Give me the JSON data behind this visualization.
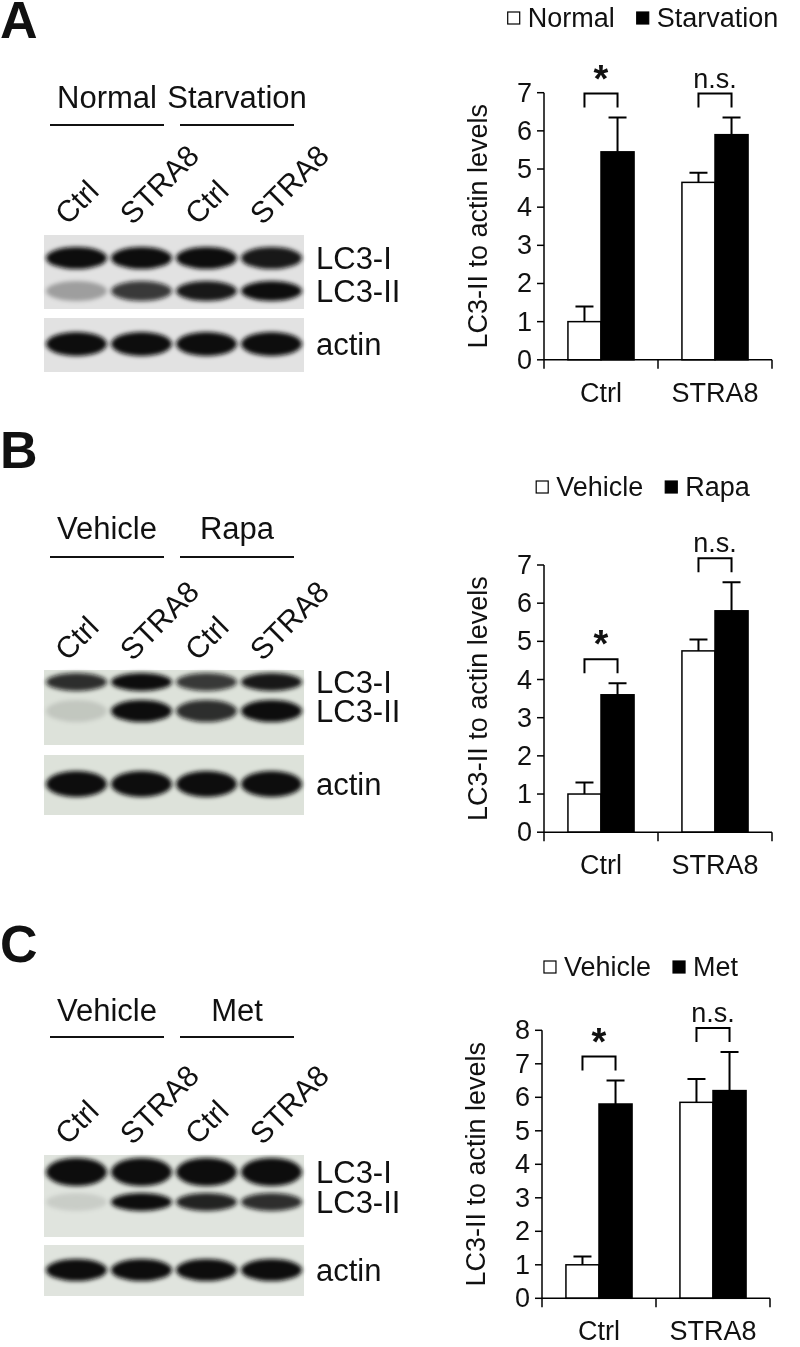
{
  "chart_data": [
    {
      "type": "other",
      "title": "A",
      "annotations": [
        "Normal",
        "Starvation",
        "Ctrl",
        "STRA8",
        "Ctrl",
        "STRA8",
        "LC3-I",
        "LC3-II",
        "actin"
      ]
    },
    {
      "type": "bar",
      "categories": [
        "Ctrl",
        "STRA8"
      ],
      "series": [
        {
          "name": "Normal",
          "color": "#ffffff",
          "values": [
            1.0,
            4.65
          ],
          "errors": [
            0.4,
            0.25
          ]
        },
        {
          "name": "Starvation",
          "color": "#000000",
          "values": [
            5.45,
            5.9
          ],
          "errors": [
            0.9,
            0.45
          ]
        }
      ],
      "ylabel": "LC3-II to actin levels",
      "ylim": [
        0,
        7
      ],
      "yticks": [
        0,
        1,
        2,
        3,
        4,
        5,
        6,
        7
      ],
      "legend": "top",
      "annotations": [
        "*",
        "n.s."
      ]
    },
    {
      "type": "other",
      "title": "B",
      "annotations": [
        "Vehicle",
        "Rapa",
        "Ctrl",
        "STRA8",
        "Ctrl",
        "STRA8",
        "LC3-I",
        "LC3-II",
        "actin"
      ]
    },
    {
      "type": "bar",
      "categories": [
        "Ctrl",
        "STRA8"
      ],
      "series": [
        {
          "name": "Vehicle",
          "color": "#ffffff",
          "values": [
            1.0,
            4.75
          ],
          "errors": [
            0.3,
            0.3
          ]
        },
        {
          "name": "Rapa",
          "color": "#000000",
          "values": [
            3.6,
            5.8
          ],
          "errors": [
            0.3,
            0.75
          ]
        }
      ],
      "ylabel": "LC3-II to actin levels",
      "ylim": [
        0,
        7
      ],
      "yticks": [
        0,
        1,
        2,
        3,
        4,
        5,
        6,
        7
      ],
      "legend": "top",
      "annotations": [
        "*",
        "n.s."
      ]
    },
    {
      "type": "other",
      "title": "C",
      "annotations": [
        "Vehicle",
        "Met",
        "Ctrl",
        "STRA8",
        "Ctrl",
        "STRA8",
        "LC3-I",
        "LC3-II",
        "actin"
      ]
    },
    {
      "type": "bar",
      "categories": [
        "Ctrl",
        "STRA8"
      ],
      "series": [
        {
          "name": "Vehicle",
          "color": "#ffffff",
          "values": [
            1.0,
            5.85
          ],
          "errors": [
            0.25,
            0.7
          ]
        },
        {
          "name": "Met",
          "color": "#000000",
          "values": [
            5.8,
            6.2
          ],
          "errors": [
            0.7,
            1.15
          ]
        }
      ],
      "ylabel": "LC3-II to actin levels",
      "ylim": [
        0,
        8
      ],
      "yticks": [
        0,
        1,
        2,
        3,
        4,
        5,
        6,
        7,
        8
      ],
      "legend": "top",
      "annotations": [
        "*",
        "n.s."
      ]
    }
  ]
}
